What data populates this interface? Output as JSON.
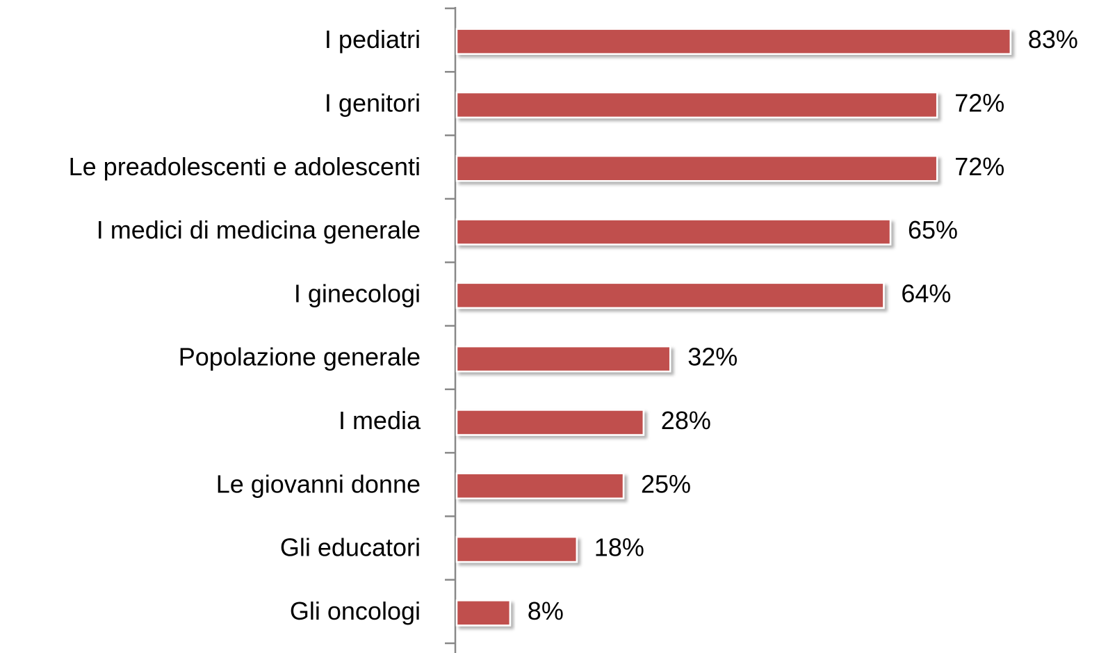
{
  "chart_data": {
    "type": "bar",
    "orientation": "horizontal",
    "categories": [
      "I pediatri",
      "I genitori",
      "Le preadolescenti e adolescenti",
      "I medici di medicina generale",
      "I ginecologi",
      "Popolazione generale",
      "I media",
      "Le giovanni donne",
      "Gli educatori",
      "Gli oncologi"
    ],
    "values": [
      83,
      72,
      72,
      65,
      64,
      32,
      28,
      25,
      18,
      8
    ],
    "value_labels": [
      "83%",
      "72%",
      "72%",
      "65%",
      "64%",
      "32%",
      "28%",
      "25%",
      "18%",
      "8%"
    ],
    "color": "#c0504d"
  }
}
